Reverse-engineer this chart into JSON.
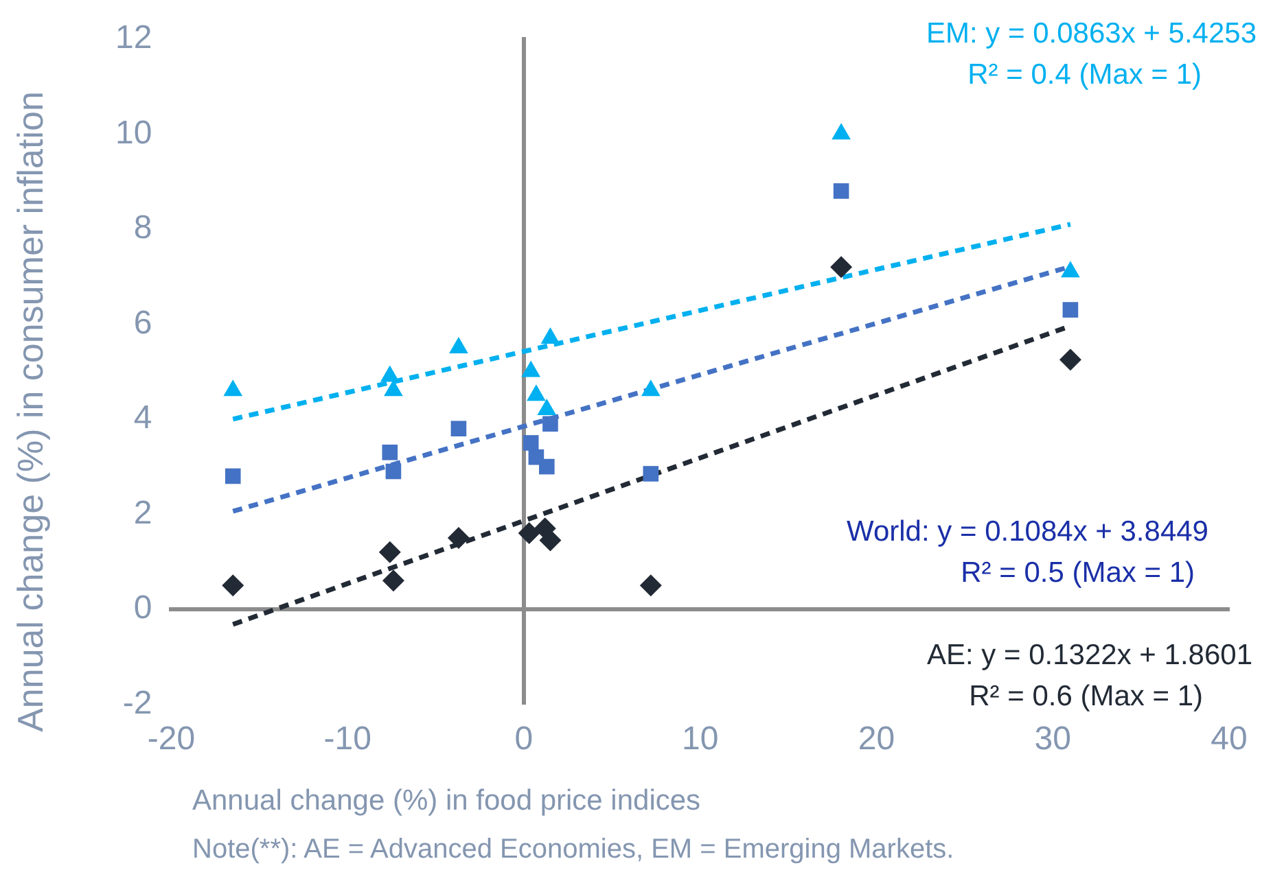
{
  "chart_data": {
    "type": "scatter",
    "xlabel": "Annual change (%) in food price indices",
    "ylabel": "Annual change (%) in consumer inflation",
    "xlim": [
      -20,
      40
    ],
    "xticks": [
      -20,
      -10,
      0,
      10,
      20,
      30,
      40
    ],
    "ylim": [
      -2,
      12
    ],
    "yticks": [
      -2,
      0,
      2,
      4,
      6,
      8,
      10,
      12
    ],
    "legend": false,
    "series": [
      {
        "color": "#00b0f0",
        "marker": "triangle",
        "x": [
          -16.5,
          -7.6,
          -7.4,
          -3.7,
          0.4,
          0.7,
          1.5,
          1.3,
          7.2,
          18,
          31
        ],
        "values": [
          4.6,
          4.9,
          4.6,
          5.5,
          5.0,
          4.5,
          5.7,
          4.2,
          4.6,
          10.0,
          7.1
        ]
      },
      {
        "color": "#4472c4",
        "marker": "square",
        "x": [
          -16.5,
          -7.6,
          -7.4,
          -3.7,
          0.4,
          0.7,
          1.5,
          1.3,
          7.2,
          18,
          31
        ],
        "values": [
          2.8,
          3.3,
          2.9,
          3.8,
          3.5,
          3.2,
          3.9,
          3.0,
          2.85,
          8.8,
          6.3
        ]
      },
      {
        "color": "#222a35",
        "marker": "diamond",
        "x": [
          -16.5,
          -7.6,
          -7.4,
          -3.7,
          0.3,
          1.2,
          1.5,
          7.2,
          18,
          31
        ],
        "values": [
          0.5,
          1.2,
          0.6,
          1.5,
          1.6,
          1.7,
          1.45,
          0.5,
          7.2,
          5.25
        ]
      },
      {
        "type": "line",
        "color": "#00b0f0",
        "marker": "none",
        "line_style": "dashed",
        "x": [
          -16.5,
          31
        ],
        "values": [
          4.0,
          8.1
        ]
      },
      {
        "type": "line",
        "color": "#4472c4",
        "marker": "none",
        "line_style": "dashed",
        "x": [
          -16.5,
          31
        ],
        "values": [
          2.06,
          7.21
        ]
      },
      {
        "type": "line",
        "color": "#222a35",
        "marker": "none",
        "line_style": "dashed",
        "x": [
          -16.5,
          31
        ],
        "values": [
          -0.32,
          5.96
        ]
      }
    ],
    "annotations": [
      "EM: y = 0.0863x + 5.4253",
      "R² = 0.4 (Max = 1)",
      "World: y = 0.1084x + 3.8449",
      "R² = 0.5 (Max = 1)",
      "AE: y = 0.1322x + 1.8601",
      "R² = 0.6 (Max = 1)",
      "Note(**): AE = Advanced Economies, EM = Emerging Markets."
    ]
  }
}
